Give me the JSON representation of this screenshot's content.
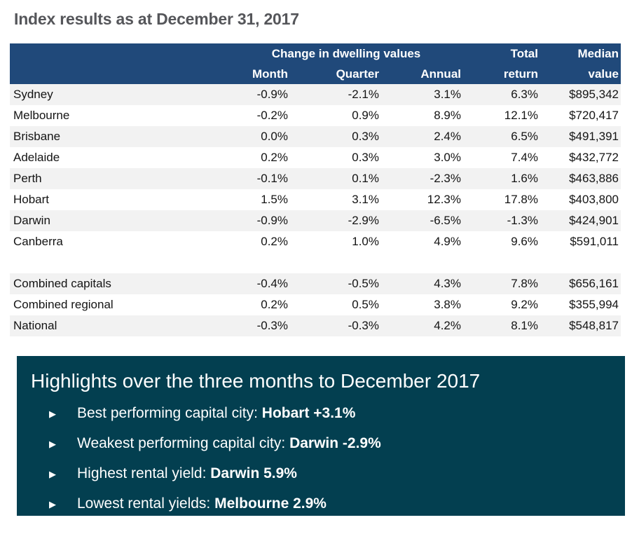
{
  "page": {
    "title": "Index results as at December 31, 2017"
  },
  "colors": {
    "table_header_blue": "#20497a",
    "row_stripe_gray": "#f2f2f2",
    "highlights_teal": "#033f50",
    "title_gray": "#55565a"
  },
  "table": {
    "group_header": "Change in dwelling values",
    "columns": {
      "month": "Month",
      "quarter": "Quarter",
      "annual": "Annual",
      "total_line1": "Total",
      "total_line2": "return",
      "median_line1": "Median",
      "median_line2": "value"
    },
    "cities": [
      {
        "name": "Sydney",
        "month": "-0.9%",
        "quarter": "-2.1%",
        "annual": "3.1%",
        "total_return": "6.3%",
        "median_value": "$895,342"
      },
      {
        "name": "Melbourne",
        "month": "-0.2%",
        "quarter": "0.9%",
        "annual": "8.9%",
        "total_return": "12.1%",
        "median_value": "$720,417"
      },
      {
        "name": "Brisbane",
        "month": "0.0%",
        "quarter": "0.3%",
        "annual": "2.4%",
        "total_return": "6.5%",
        "median_value": "$491,391"
      },
      {
        "name": "Adelaide",
        "month": "0.2%",
        "quarter": "0.3%",
        "annual": "3.0%",
        "total_return": "7.4%",
        "median_value": "$432,772"
      },
      {
        "name": "Perth",
        "month": "-0.1%",
        "quarter": "0.1%",
        "annual": "-2.3%",
        "total_return": "1.6%",
        "median_value": "$463,886"
      },
      {
        "name": "Hobart",
        "month": "1.5%",
        "quarter": "3.1%",
        "annual": "12.3%",
        "total_return": "17.8%",
        "median_value": "$403,800"
      },
      {
        "name": "Darwin",
        "month": "-0.9%",
        "quarter": "-2.9%",
        "annual": "-6.5%",
        "total_return": "-1.3%",
        "median_value": "$424,901"
      },
      {
        "name": "Canberra",
        "month": "0.2%",
        "quarter": "1.0%",
        "annual": "4.9%",
        "total_return": "9.6%",
        "median_value": "$591,011"
      }
    ],
    "aggregates": [
      {
        "name": "Combined capitals",
        "month": "-0.4%",
        "quarter": "-0.5%",
        "annual": "4.3%",
        "total_return": "7.8%",
        "median_value": "$656,161"
      },
      {
        "name": "Combined regional",
        "month": "0.2%",
        "quarter": "0.5%",
        "annual": "3.8%",
        "total_return": "9.2%",
        "median_value": "$355,994"
      },
      {
        "name": "National",
        "month": "-0.3%",
        "quarter": "-0.3%",
        "annual": "4.2%",
        "total_return": "8.1%",
        "median_value": "$548,817"
      }
    ]
  },
  "highlights": {
    "title": "Highlights over the three months to December 2017",
    "bullet_glyph": "▶",
    "items": [
      {
        "label": "Best performing capital city: ",
        "value": "Hobart +3.1%"
      },
      {
        "label": "Weakest performing capital city: ",
        "value": "Darwin -2.9%"
      },
      {
        "label": "Highest rental yield: ",
        "value": "Darwin 5.9%"
      },
      {
        "label": "Lowest rental yields: ",
        "value": "Melbourne 2.9%"
      }
    ]
  }
}
